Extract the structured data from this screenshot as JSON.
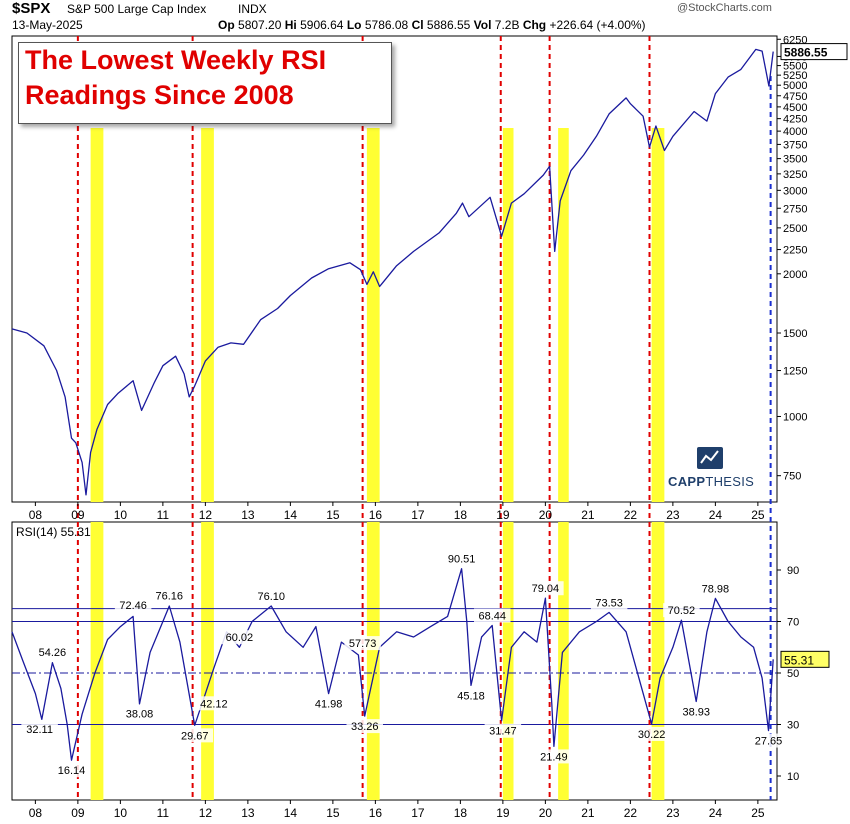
{
  "header": {
    "symbol": "$SPX",
    "name": "S&P 500 Large Cap Index",
    "exchange": "INDX",
    "date": "13-May-2025",
    "op_label": "Op",
    "op": "5807.20",
    "hi_label": "Hi",
    "hi": "5906.64",
    "lo_label": "Lo",
    "lo": "5786.08",
    "cl_label": "Cl",
    "cl": "5886.55",
    "vol_label": "Vol",
    "vol": "7.2B",
    "chg_label": "Chg",
    "chg": "+226.64 (+4.00%)",
    "watermark": "@StockCharts.com"
  },
  "callout": {
    "line1": "The Lowest Weekly RSI",
    "line2": "Readings Since 2008"
  },
  "logo": {
    "bold": "CAPP",
    "light": "THESIS"
  },
  "colors": {
    "line": "#1a1a9e",
    "marker": "#e00000",
    "highlight": "#ffff33",
    "grid": "#1a1a9e",
    "last_price_box": "#ffff66"
  },
  "chart_data": [
    {
      "type": "line",
      "title": "$SPX",
      "scale": "log",
      "yticks": [
        750,
        1000,
        1250,
        1500,
        2000,
        2250,
        2500,
        2750,
        3000,
        3250,
        3500,
        3750,
        4000,
        4250,
        4500,
        4750,
        5000,
        5250,
        5500,
        5750,
        6250
      ],
      "last_value_label": "5886.55",
      "series": [
        {
          "x": [
            2007.45,
            2007.8,
            2008.2,
            2008.5,
            2008.7,
            2008.85,
            2008.95,
            2009.1,
            2009.19,
            2009.3,
            2009.45,
            2009.7,
            2009.95,
            2010.3,
            2010.5,
            2010.8,
            2011.0,
            2011.3,
            2011.5,
            2011.62,
            2011.75,
            2012.0,
            2012.3,
            2012.6,
            2012.9,
            2013.3,
            2013.7,
            2014.0,
            2014.5,
            2014.9,
            2015.4,
            2015.65,
            2015.8,
            2015.95,
            2016.1,
            2016.5,
            2016.9,
            2017.5,
            2017.9,
            2018.05,
            2018.2,
            2018.7,
            2018.97,
            2019.2,
            2019.5,
            2019.95,
            2020.1,
            2020.22,
            2020.35,
            2020.6,
            2020.9,
            2021.2,
            2021.5,
            2021.9,
            2022.0,
            2022.3,
            2022.45,
            2022.6,
            2022.8,
            2023.0,
            2023.5,
            2023.8,
            2024.0,
            2024.3,
            2024.6,
            2024.95,
            2025.1,
            2025.26,
            2025.36
          ],
          "values": [
            1530,
            1500,
            1410,
            1250,
            1100,
            900,
            880,
            800,
            683,
            840,
            940,
            1060,
            1120,
            1190,
            1030,
            1180,
            1280,
            1340,
            1230,
            1100,
            1160,
            1310,
            1400,
            1430,
            1420,
            1600,
            1690,
            1800,
            1960,
            2050,
            2110,
            2040,
            1900,
            2020,
            1880,
            2080,
            2230,
            2440,
            2680,
            2820,
            2640,
            2900,
            2400,
            2820,
            2950,
            3230,
            3370,
            2230,
            2850,
            3300,
            3560,
            3900,
            4350,
            4700,
            4570,
            4300,
            3700,
            4100,
            3640,
            3900,
            4400,
            4200,
            4800,
            5200,
            5400,
            5950,
            5900,
            4980,
            5886
          ]
        }
      ]
    },
    {
      "type": "line",
      "title": "RSI(14) 55.31",
      "ylim": [
        0,
        100
      ],
      "yticks": [
        10,
        30,
        50,
        70,
        90
      ],
      "reference_lines": [
        30,
        50,
        70,
        75
      ],
      "last_value_label": "55.31",
      "annotations": [
        {
          "x": 2008.4,
          "value": "54.26"
        },
        {
          "x": 2008.1,
          "value": "32.11"
        },
        {
          "x": 2008.85,
          "value": "16.14"
        },
        {
          "x": 2010.3,
          "value": "72.46"
        },
        {
          "x": 2011.15,
          "value": "76.16"
        },
        {
          "x": 2010.45,
          "value": "38.08"
        },
        {
          "x": 2011.75,
          "value": "29.67"
        },
        {
          "x": 2012.2,
          "value": "42.12"
        },
        {
          "x": 2012.8,
          "value": "60.02"
        },
        {
          "x": 2013.55,
          "value": "76.10"
        },
        {
          "x": 2014.9,
          "value": "41.98"
        },
        {
          "x": 2015.7,
          "value": "57.73"
        },
        {
          "x": 2015.75,
          "value": "33.26"
        },
        {
          "x": 2018.03,
          "value": "90.51"
        },
        {
          "x": 2018.75,
          "value": "68.44"
        },
        {
          "x": 2018.25,
          "value": "45.18"
        },
        {
          "x": 2019.0,
          "value": "31.47"
        },
        {
          "x": 2020.0,
          "value": "79.04"
        },
        {
          "x": 2020.2,
          "value": "21.49"
        },
        {
          "x": 2021.5,
          "value": "73.53"
        },
        {
          "x": 2022.5,
          "value": "30.22"
        },
        {
          "x": 2023.2,
          "value": "70.52"
        },
        {
          "x": 2023.55,
          "value": "38.93"
        },
        {
          "x": 2024.0,
          "value": "78.98"
        },
        {
          "x": 2025.25,
          "value": "27.65"
        }
      ],
      "series": [
        {
          "x": [
            2007.45,
            2007.7,
            2008.0,
            2008.15,
            2008.4,
            2008.6,
            2008.75,
            2008.85,
            2009.1,
            2009.4,
            2009.7,
            2010.0,
            2010.3,
            2010.45,
            2010.7,
            2011.15,
            2011.4,
            2011.75,
            2012.0,
            2012.2,
            2012.5,
            2012.8,
            2013.1,
            2013.55,
            2013.9,
            2014.3,
            2014.6,
            2014.9,
            2015.2,
            2015.6,
            2015.75,
            2016.1,
            2016.5,
            2016.9,
            2017.3,
            2017.7,
            2018.03,
            2018.15,
            2018.25,
            2018.5,
            2018.75,
            2018.97,
            2019.2,
            2019.5,
            2019.8,
            2020.0,
            2020.15,
            2020.2,
            2020.4,
            2020.8,
            2021.2,
            2021.5,
            2021.9,
            2022.2,
            2022.5,
            2022.7,
            2023.0,
            2023.2,
            2023.55,
            2023.8,
            2024.0,
            2024.3,
            2024.6,
            2024.9,
            2025.1,
            2025.25,
            2025.36
          ],
          "values": [
            66,
            55,
            42,
            32,
            54,
            44,
            30,
            16.14,
            34,
            50,
            63,
            68,
            72,
            38,
            58,
            76,
            62,
            29.67,
            42,
            52,
            66,
            60,
            70,
            76,
            66,
            60,
            68,
            42,
            62,
            57,
            33.26,
            60,
            66,
            64,
            68,
            72,
            90.51,
            70,
            45.18,
            64,
            68.44,
            31.47,
            60,
            66,
            62,
            79.04,
            38,
            21.49,
            58,
            66,
            70,
            73.53,
            66,
            48,
            30.22,
            48,
            60,
            70.52,
            38.93,
            66,
            78.98,
            70,
            64,
            60,
            48,
            27.65,
            55.31
          ]
        }
      ]
    }
  ],
  "x_axis_labels": [
    "08",
    "09",
    "10",
    "11",
    "12",
    "13",
    "14",
    "15",
    "16",
    "17",
    "18",
    "19",
    "20",
    "21",
    "22",
    "23",
    "24",
    "25"
  ],
  "markers": {
    "red_dashed_years": [
      2009.0,
      2011.7,
      2015.7,
      2018.95,
      2020.1,
      2022.45
    ],
    "blue_dashed_year": 2025.3,
    "yellow_bands": [
      [
        2009.3,
        2009.6
      ],
      [
        2011.9,
        2012.2
      ],
      [
        2015.8,
        2016.1
      ],
      [
        2019.0,
        2019.25
      ],
      [
        2020.3,
        2020.55
      ],
      [
        2022.5,
        2022.8
      ]
    ]
  }
}
